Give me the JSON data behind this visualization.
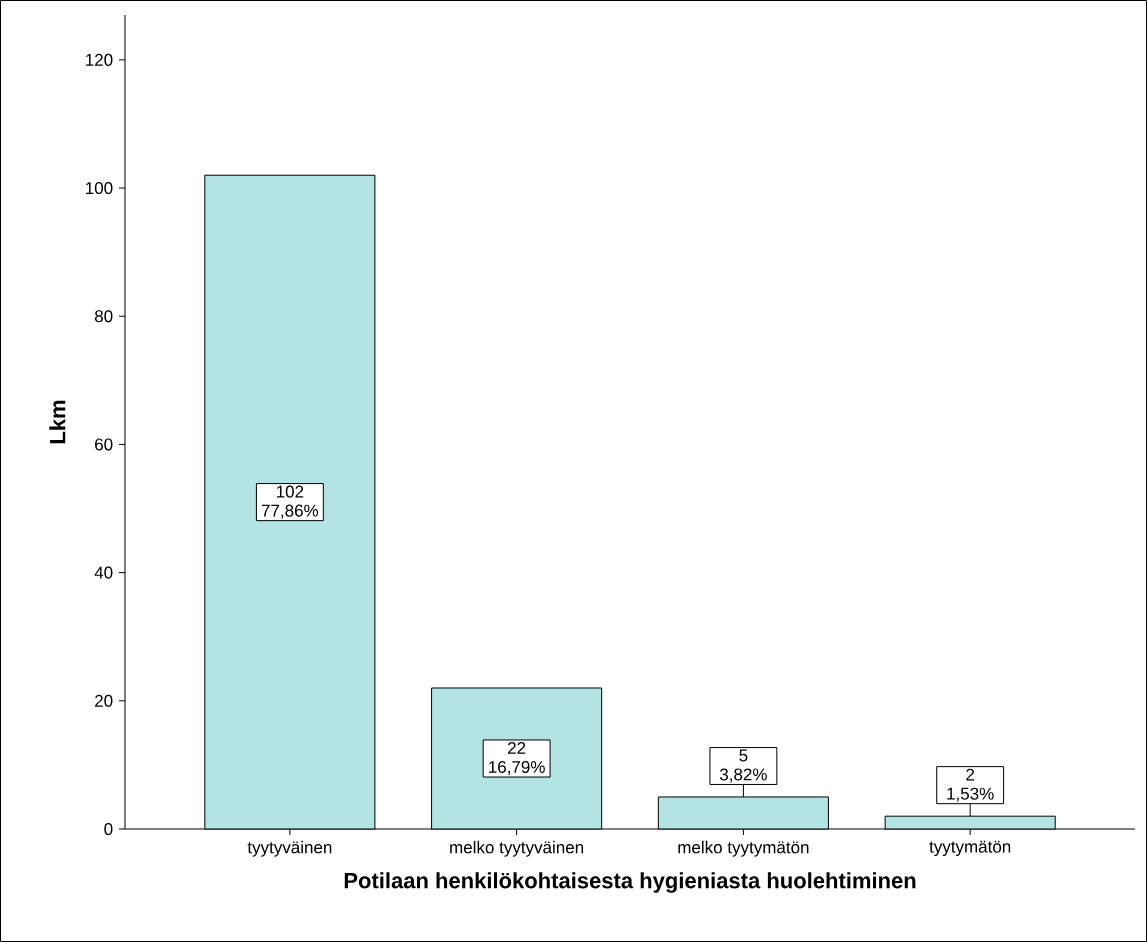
{
  "chart_data": {
    "type": "bar",
    "xlabel": "Potilaan henkilökohtaisesta hygieniasta huolehtiminen",
    "ylabel": "Lkm",
    "categories": [
      "tyytyväinen",
      "melko tyytyväinen",
      "melko tyytymätön",
      "tyytymätön"
    ],
    "values": [
      102,
      22,
      5,
      2
    ],
    "value_labels": [
      "102 77,86%",
      "22 16,79%",
      "5 3,82%",
      "2 1,53%"
    ],
    "color": "#b3e3e3",
    "ylim": [
      0,
      127
    ],
    "yticks": [
      0,
      20,
      40,
      60,
      80,
      100,
      120
    ],
    "grid": false
  }
}
